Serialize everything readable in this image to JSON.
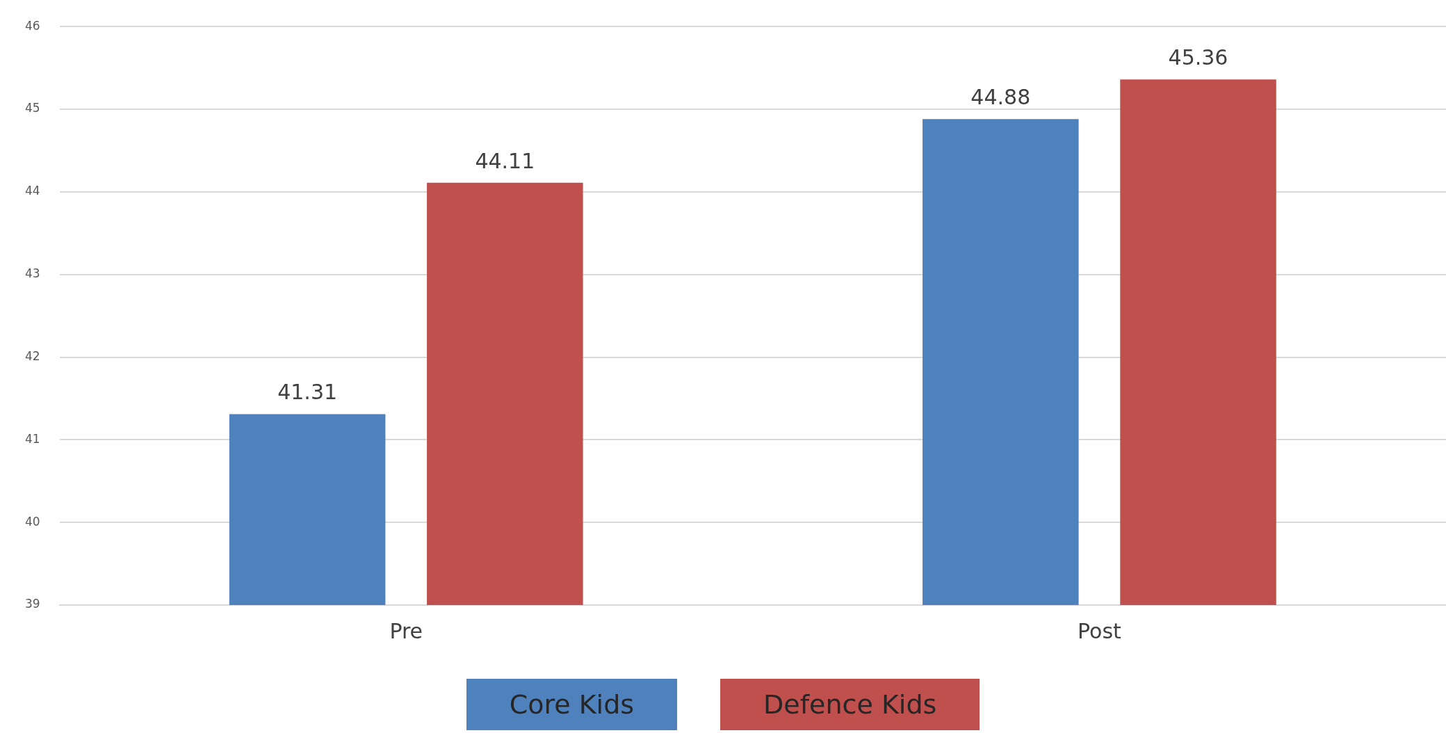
{
  "chart_data": {
    "type": "bar",
    "categories": [
      "Pre",
      "Post"
    ],
    "series": [
      {
        "name": "Core Kids",
        "color": "#4f81bd",
        "values": [
          41.31,
          44.88
        ]
      },
      {
        "name": "Defence Kids",
        "color": "#c0504d",
        "values": [
          44.11,
          45.36
        ]
      }
    ],
    "ylim": [
      39,
      46
    ],
    "yticks": [
      39,
      40,
      41,
      42,
      43,
      44,
      45,
      46
    ],
    "grid": "y",
    "legend": "bottom",
    "data_labels": true
  }
}
